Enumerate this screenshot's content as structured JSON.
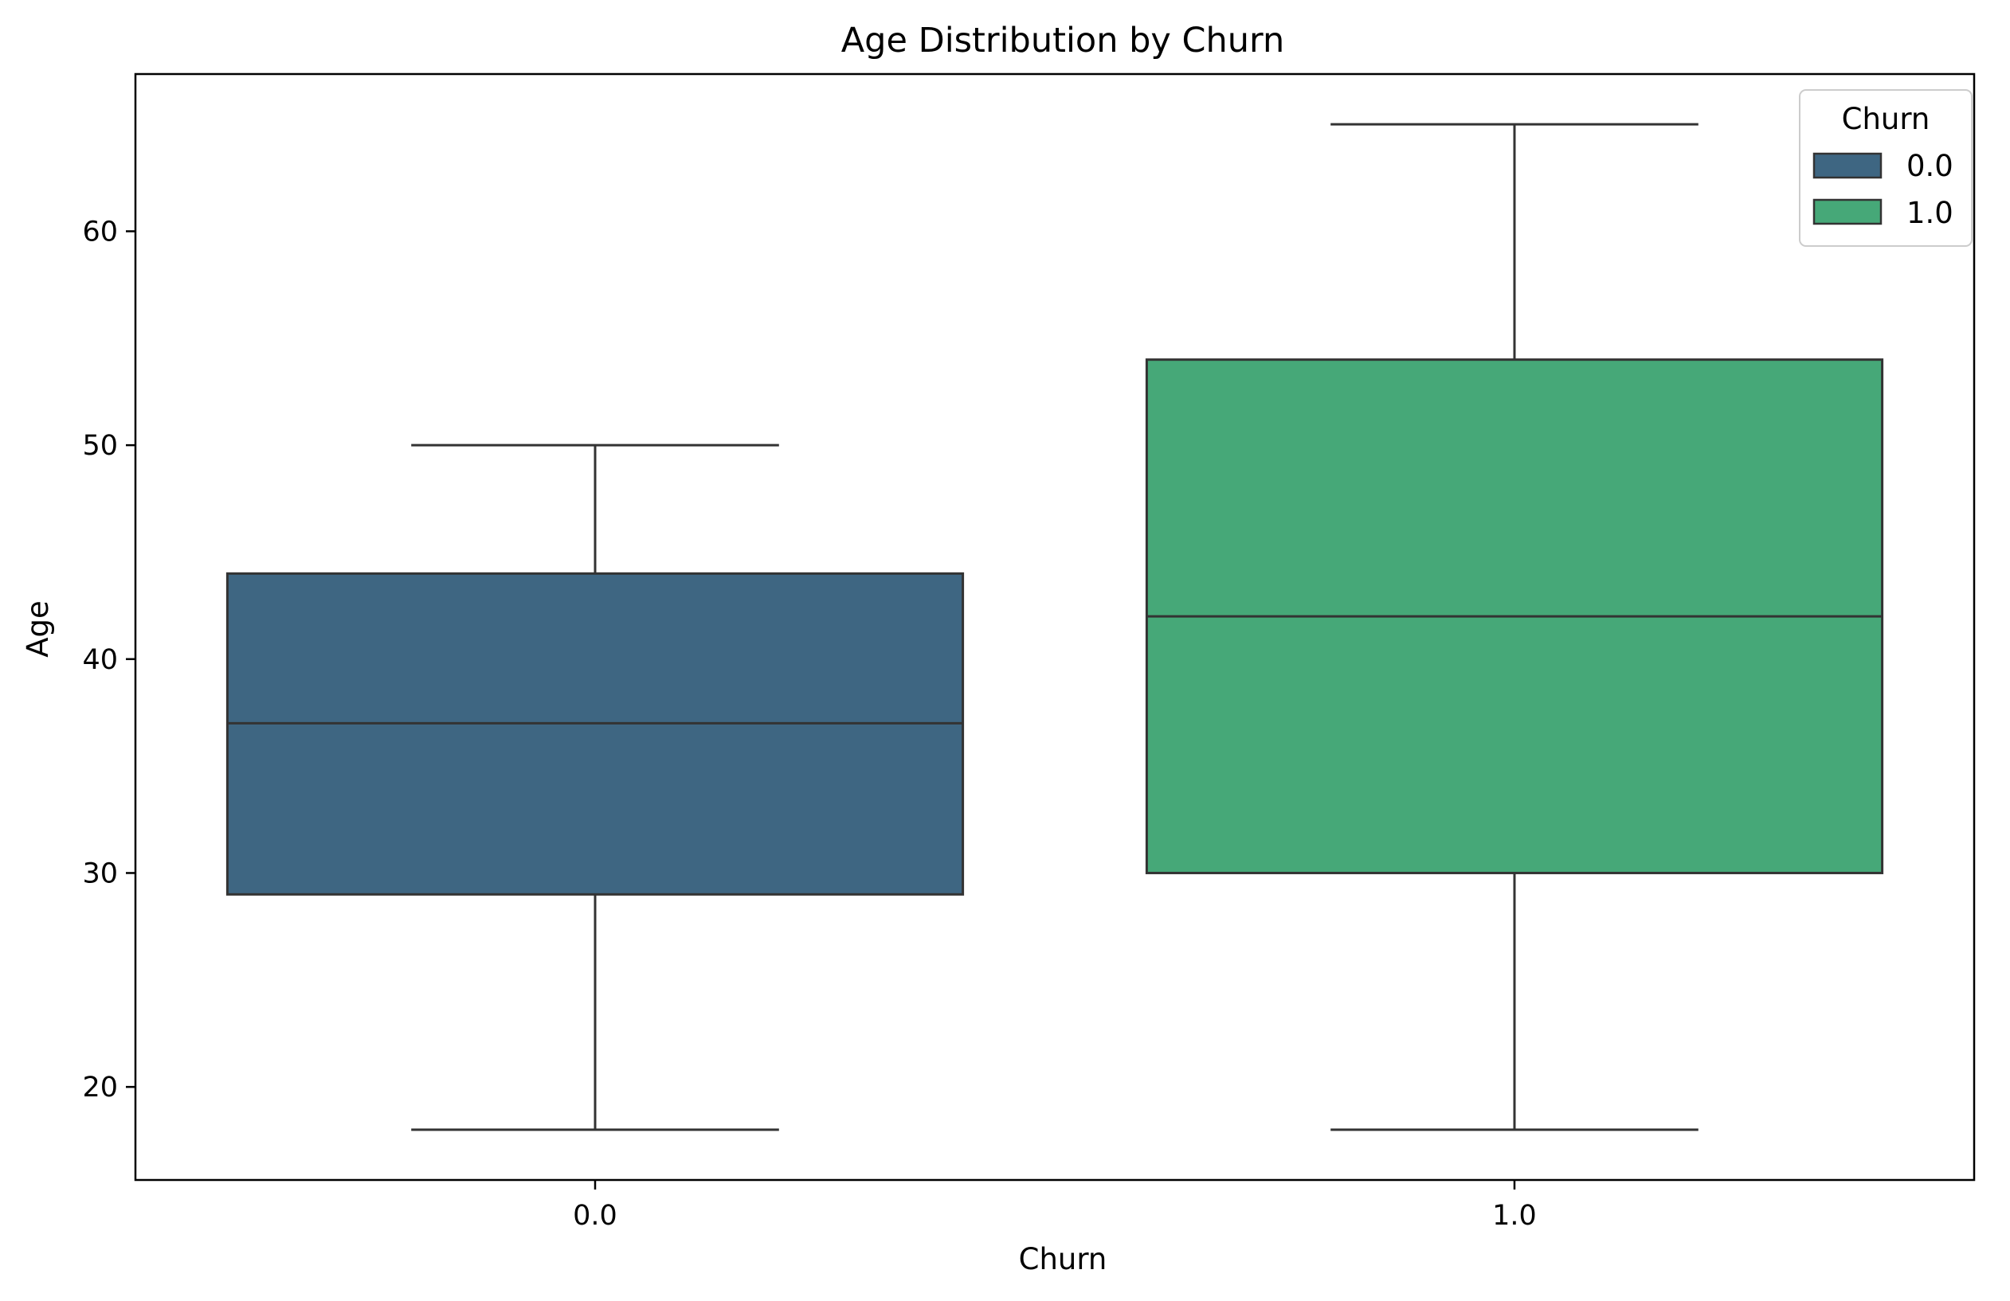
{
  "chart_data": {
    "type": "box",
    "title": "Age Distribution by Churn",
    "xlabel": "Churn",
    "ylabel": "Age",
    "categories": [
      "0.0",
      "1.0"
    ],
    "ylim": [
      15.65,
      67.35
    ],
    "yticks": [
      20,
      30,
      40,
      50,
      60
    ],
    "ytick_labels": [
      "20",
      "30",
      "40",
      "50",
      "60"
    ],
    "boxes": [
      {
        "category": "0.0",
        "whisker_low": 18,
        "q1": 29,
        "median": 37,
        "q3": 44,
        "whisker_high": 50,
        "color": "#3e6682"
      },
      {
        "category": "1.0",
        "whisker_low": 18,
        "q1": 30,
        "median": 42,
        "q3": 54,
        "whisker_high": 65,
        "color": "#46a878"
      }
    ],
    "legend": {
      "title": "Churn",
      "placement": "top-right",
      "entries": [
        {
          "label": "0.0",
          "color": "#3e6682"
        },
        {
          "label": "1.0",
          "color": "#46a878"
        }
      ]
    },
    "grid": false
  }
}
